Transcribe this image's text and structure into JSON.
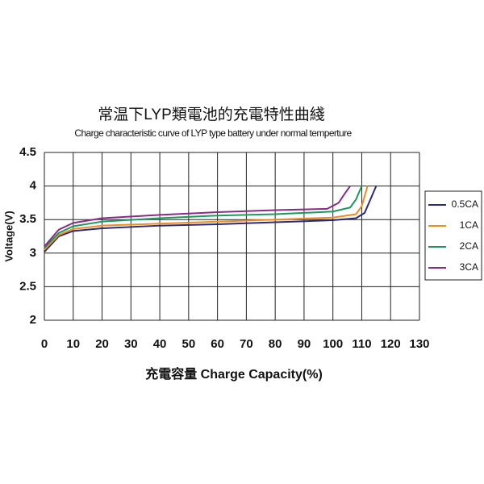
{
  "chart_data": {
    "type": "line",
    "title": "常温下LYP類電池的充電特性曲綫",
    "subtitle": "Charge characteristic curve of LYP type battery under normal temperture",
    "x_label": "充電容量 Charge Capacity(%)",
    "y_label": "Voltage(V)",
    "xlim": [
      0,
      130
    ],
    "xticks": [
      0,
      10,
      20,
      30,
      40,
      50,
      60,
      70,
      80,
      90,
      100,
      110,
      120,
      130
    ],
    "ylim": [
      2,
      4.5
    ],
    "yticks": [
      2,
      2.5,
      3,
      3.5,
      4,
      4.5
    ],
    "grid": true,
    "legend": "right",
    "series": [
      {
        "name": "0.5CA",
        "color": "#2a2a80",
        "x": [
          0,
          5,
          10,
          20,
          40,
          60,
          80,
          100,
          108,
          111,
          113,
          115
        ],
        "values": [
          3.02,
          3.25,
          3.33,
          3.37,
          3.41,
          3.43,
          3.46,
          3.49,
          3.52,
          3.6,
          3.8,
          4.0
        ]
      },
      {
        "name": "1CA",
        "color": "#f28a1e",
        "x": [
          0,
          5,
          10,
          20,
          40,
          60,
          80,
          100,
          108,
          110,
          112
        ],
        "values": [
          3.05,
          3.27,
          3.36,
          3.41,
          3.44,
          3.47,
          3.5,
          3.53,
          3.58,
          3.7,
          4.0
        ]
      },
      {
        "name": "2CA",
        "color": "#1a9a5a",
        "x": [
          0,
          5,
          10,
          20,
          40,
          60,
          80,
          100,
          106,
          108,
          110
        ],
        "values": [
          3.08,
          3.3,
          3.4,
          3.47,
          3.52,
          3.56,
          3.58,
          3.62,
          3.68,
          3.8,
          4.0
        ]
      },
      {
        "name": "3CA",
        "color": "#8b2a8b",
        "x": [
          0,
          5,
          10,
          20,
          40,
          60,
          80,
          98,
          102,
          104,
          106
        ],
        "values": [
          3.1,
          3.35,
          3.45,
          3.52,
          3.57,
          3.61,
          3.64,
          3.66,
          3.75,
          3.88,
          4.0
        ]
      }
    ]
  }
}
